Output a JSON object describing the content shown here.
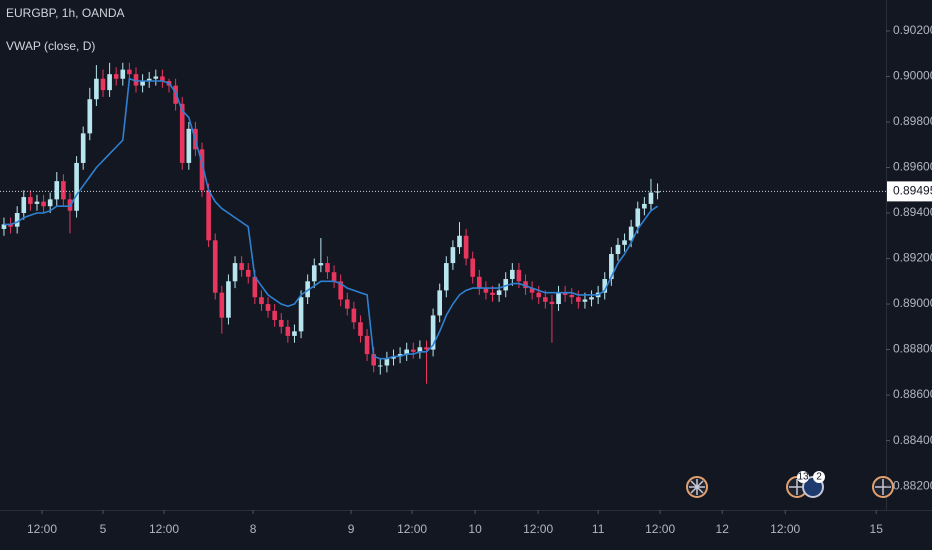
{
  "chart_data": {
    "type": "candlestick",
    "title": "EURGBP, 1h, OANDA",
    "indicator": "VWAP (close, D)",
    "up_color": "#b8e6ee",
    "down_color": "#e8365f",
    "open": [
      0.8933,
      0.8935,
      0.8934,
      0.894,
      0.8947,
      0.8944,
      0.8945,
      0.8943,
      0.8946,
      0.8954,
      0.8946,
      0.8941,
      0.8962,
      0.8975,
      0.899,
      0.8999,
      0.8994,
      0.9001,
      0.8999,
      0.9003,
      0.9001,
      0.8996,
      0.8998,
      0.8999,
      0.9,
      0.8998,
      0.8996,
      0.8988,
      0.8962,
      0.8977,
      0.8968,
      0.895,
      0.8928,
      0.8905,
      0.8894,
      0.891,
      0.8918,
      0.8915,
      0.8912,
      0.8903,
      0.89,
      0.8897,
      0.8893,
      0.889,
      0.8886,
      0.8888,
      0.8903,
      0.891,
      0.8917,
      0.8918,
      0.8914,
      0.891,
      0.8902,
      0.8898,
      0.8892,
      0.8886,
      0.8878,
      0.8873,
      0.8873,
      0.8876,
      0.8877,
      0.8878,
      0.888,
      0.8879,
      0.8881,
      0.888,
      0.8895,
      0.8906,
      0.8918,
      0.8925,
      0.893,
      0.892,
      0.8912,
      0.8907,
      0.8905,
      0.8904,
      0.8906,
      0.8911,
      0.8915,
      0.891,
      0.8907,
      0.8905,
      0.8903,
      0.8901,
      0.89,
      0.8905,
      0.8904,
      0.8903,
      0.8901,
      0.8902,
      0.8903,
      0.8905,
      0.8911,
      0.8922,
      0.8926,
      0.8928,
      0.8934,
      0.8942,
      0.8944,
      0.8949
    ],
    "high": [
      0.8938,
      0.8938,
      0.8943,
      0.895,
      0.895,
      0.8948,
      0.8948,
      0.8949,
      0.8958,
      0.8957,
      0.8949,
      0.8965,
      0.8978,
      0.8995,
      0.9005,
      0.9003,
      0.9006,
      0.9004,
      0.9006,
      0.9006,
      0.9004,
      0.9001,
      0.9002,
      0.9003,
      0.9003,
      0.8999,
      0.8999,
      0.8991,
      0.898,
      0.898,
      0.8971,
      0.8953,
      0.8931,
      0.8908,
      0.8913,
      0.8921,
      0.8921,
      0.8918,
      0.8915,
      0.8906,
      0.8903,
      0.89,
      0.8896,
      0.8893,
      0.8891,
      0.8906,
      0.8913,
      0.892,
      0.8929,
      0.8921,
      0.8917,
      0.8913,
      0.8905,
      0.8901,
      0.8895,
      0.8889,
      0.8881,
      0.8876,
      0.8879,
      0.888,
      0.8881,
      0.8883,
      0.8883,
      0.8884,
      0.8884,
      0.8898,
      0.8909,
      0.8921,
      0.8928,
      0.8936,
      0.8933,
      0.8923,
      0.8915,
      0.891,
      0.8908,
      0.8909,
      0.8914,
      0.8918,
      0.8918,
      0.8913,
      0.891,
      0.8908,
      0.8906,
      0.8904,
      0.8908,
      0.8908,
      0.8907,
      0.8906,
      0.8905,
      0.8906,
      0.8908,
      0.8914,
      0.8925,
      0.8929,
      0.8931,
      0.8937,
      0.8945,
      0.8947,
      0.8955,
      0.8953
    ],
    "low": [
      0.893,
      0.8931,
      0.8931,
      0.8937,
      0.8941,
      0.8941,
      0.894,
      0.894,
      0.8943,
      0.8943,
      0.8931,
      0.8938,
      0.8959,
      0.8972,
      0.8987,
      0.8991,
      0.8991,
      0.8996,
      0.8996,
      0.8998,
      0.8993,
      0.8993,
      0.8995,
      0.8996,
      0.8995,
      0.8993,
      0.8985,
      0.8959,
      0.8959,
      0.8965,
      0.8947,
      0.8925,
      0.8902,
      0.8887,
      0.8891,
      0.8907,
      0.8912,
      0.8909,
      0.89,
      0.8897,
      0.8894,
      0.889,
      0.8887,
      0.8883,
      0.8883,
      0.8885,
      0.89,
      0.8907,
      0.8914,
      0.8911,
      0.8907,
      0.8899,
      0.8895,
      0.8889,
      0.8883,
      0.8875,
      0.887,
      0.8869,
      0.887,
      0.8873,
      0.8874,
      0.8875,
      0.8876,
      0.8876,
      0.8865,
      0.8877,
      0.8892,
      0.8903,
      0.8915,
      0.8922,
      0.8917,
      0.8909,
      0.8904,
      0.8902,
      0.8901,
      0.8901,
      0.8903,
      0.8908,
      0.8907,
      0.8904,
      0.8902,
      0.89,
      0.8898,
      0.8883,
      0.8897,
      0.8901,
      0.89,
      0.8898,
      0.8898,
      0.8899,
      0.89,
      0.8902,
      0.8908,
      0.8919,
      0.8923,
      0.8925,
      0.8931,
      0.8939,
      0.8941,
      0.8946
    ],
    "close": [
      0.8935,
      0.8934,
      0.894,
      0.8947,
      0.8944,
      0.8945,
      0.8943,
      0.8946,
      0.8954,
      0.8946,
      0.8941,
      0.8962,
      0.8975,
      0.899,
      0.8999,
      0.8994,
      0.9001,
      0.8999,
      0.9003,
      0.9001,
      0.8996,
      0.8998,
      0.8999,
      0.9,
      0.8998,
      0.8996,
      0.8988,
      0.8962,
      0.8977,
      0.8968,
      0.895,
      0.8928,
      0.8905,
      0.8894,
      0.891,
      0.8918,
      0.8915,
      0.8912,
      0.8903,
      0.89,
      0.8897,
      0.8893,
      0.889,
      0.8886,
      0.8888,
      0.8903,
      0.891,
      0.8917,
      0.8918,
      0.8914,
      0.891,
      0.8902,
      0.8898,
      0.8892,
      0.8886,
      0.8878,
      0.8873,
      0.8873,
      0.8876,
      0.8877,
      0.8878,
      0.888,
      0.8879,
      0.8881,
      0.888,
      0.8895,
      0.8906,
      0.8918,
      0.8925,
      0.893,
      0.892,
      0.8912,
      0.8907,
      0.8905,
      0.8904,
      0.8906,
      0.8911,
      0.8915,
      0.891,
      0.8907,
      0.8905,
      0.8903,
      0.8901,
      0.89,
      0.8905,
      0.8904,
      0.8903,
      0.8901,
      0.8902,
      0.8903,
      0.8905,
      0.8911,
      0.8922,
      0.8926,
      0.8928,
      0.8934,
      0.8942,
      0.8944,
      0.8949,
      0.89495
    ],
    "series": [
      {
        "color": "#2f80d0",
        "values": [
          0.8935,
          0.8935,
          0.8936,
          0.8938,
          0.8939,
          0.894,
          0.894,
          0.8941,
          0.8943,
          0.8943,
          0.8943,
          0.8948,
          0.8952,
          0.8956,
          0.896,
          0.8963,
          0.8966,
          0.8969,
          0.8972,
          0.8999,
          0.8998,
          0.8998,
          0.8998,
          0.8998,
          0.8998,
          0.8997,
          0.8993,
          0.8985,
          0.8982,
          0.8972,
          0.8962,
          0.895,
          0.8945,
          0.8942,
          0.894,
          0.8938,
          0.8936,
          0.8934,
          0.8912,
          0.8908,
          0.8904,
          0.8902,
          0.89,
          0.8899,
          0.89,
          0.8904,
          0.8906,
          0.8908,
          0.891,
          0.891,
          0.891,
          0.8909,
          0.8907,
          0.8906,
          0.8905,
          0.8904,
          0.8877,
          0.8876,
          0.8876,
          0.8877,
          0.8877,
          0.8878,
          0.8878,
          0.8879,
          0.8879,
          0.8882,
          0.8888,
          0.8895,
          0.89,
          0.8904,
          0.8906,
          0.8907,
          0.8907,
          0.8907,
          0.8907,
          0.8907,
          0.8908,
          0.8909,
          0.8909,
          0.8908,
          0.8907,
          0.8906,
          0.8905,
          0.8905,
          0.8905,
          0.8905,
          0.8905,
          0.8904,
          0.8904,
          0.8904,
          0.8904,
          0.8906,
          0.8912,
          0.8918,
          0.8922,
          0.8927,
          0.8933,
          0.8937,
          0.8941,
          0.8943
        ]
      }
    ],
    "last_price": {
      "value": 0.89495,
      "label": "0.89495"
    },
    "xlim": [
      -0.6,
      133.6
    ],
    "xticks": [
      {
        "value": 5.76,
        "label": "12:00"
      },
      {
        "value": 15,
        "label": "5"
      },
      {
        "value": 24.24,
        "label": "12:00"
      },
      {
        "value": 37.73,
        "label": "8"
      },
      {
        "value": 52.58,
        "label": "9"
      },
      {
        "value": 61.82,
        "label": "12:00"
      },
      {
        "value": 71.36,
        "label": "10"
      },
      {
        "value": 80.91,
        "label": "12:00"
      },
      {
        "value": 90,
        "label": "11"
      },
      {
        "value": 99.39,
        "label": "12:00"
      },
      {
        "value": 108.79,
        "label": "12"
      },
      {
        "value": 118.33,
        "label": "12:00"
      },
      {
        "value": 132.12,
        "label": "15"
      }
    ],
    "ylim": [
      0.88095,
      0.90336
    ],
    "yticks": [
      {
        "value": 0.902,
        "label": "0.90200"
      },
      {
        "value": 0.9,
        "label": "0.90000"
      },
      {
        "value": 0.898,
        "label": "0.89800"
      },
      {
        "value": 0.896,
        "label": "0.89600"
      },
      {
        "value": 0.894,
        "label": "0.89400"
      },
      {
        "value": 0.892,
        "label": "0.89200"
      },
      {
        "value": 0.89,
        "label": "0.89000"
      },
      {
        "value": 0.888,
        "label": "0.88800"
      },
      {
        "value": 0.886,
        "label": "0.88600"
      },
      {
        "value": 0.884,
        "label": "0.88400"
      },
      {
        "value": 0.882,
        "label": "0.88200"
      }
    ],
    "grid": false,
    "events": [
      "13",
      "2"
    ]
  }
}
